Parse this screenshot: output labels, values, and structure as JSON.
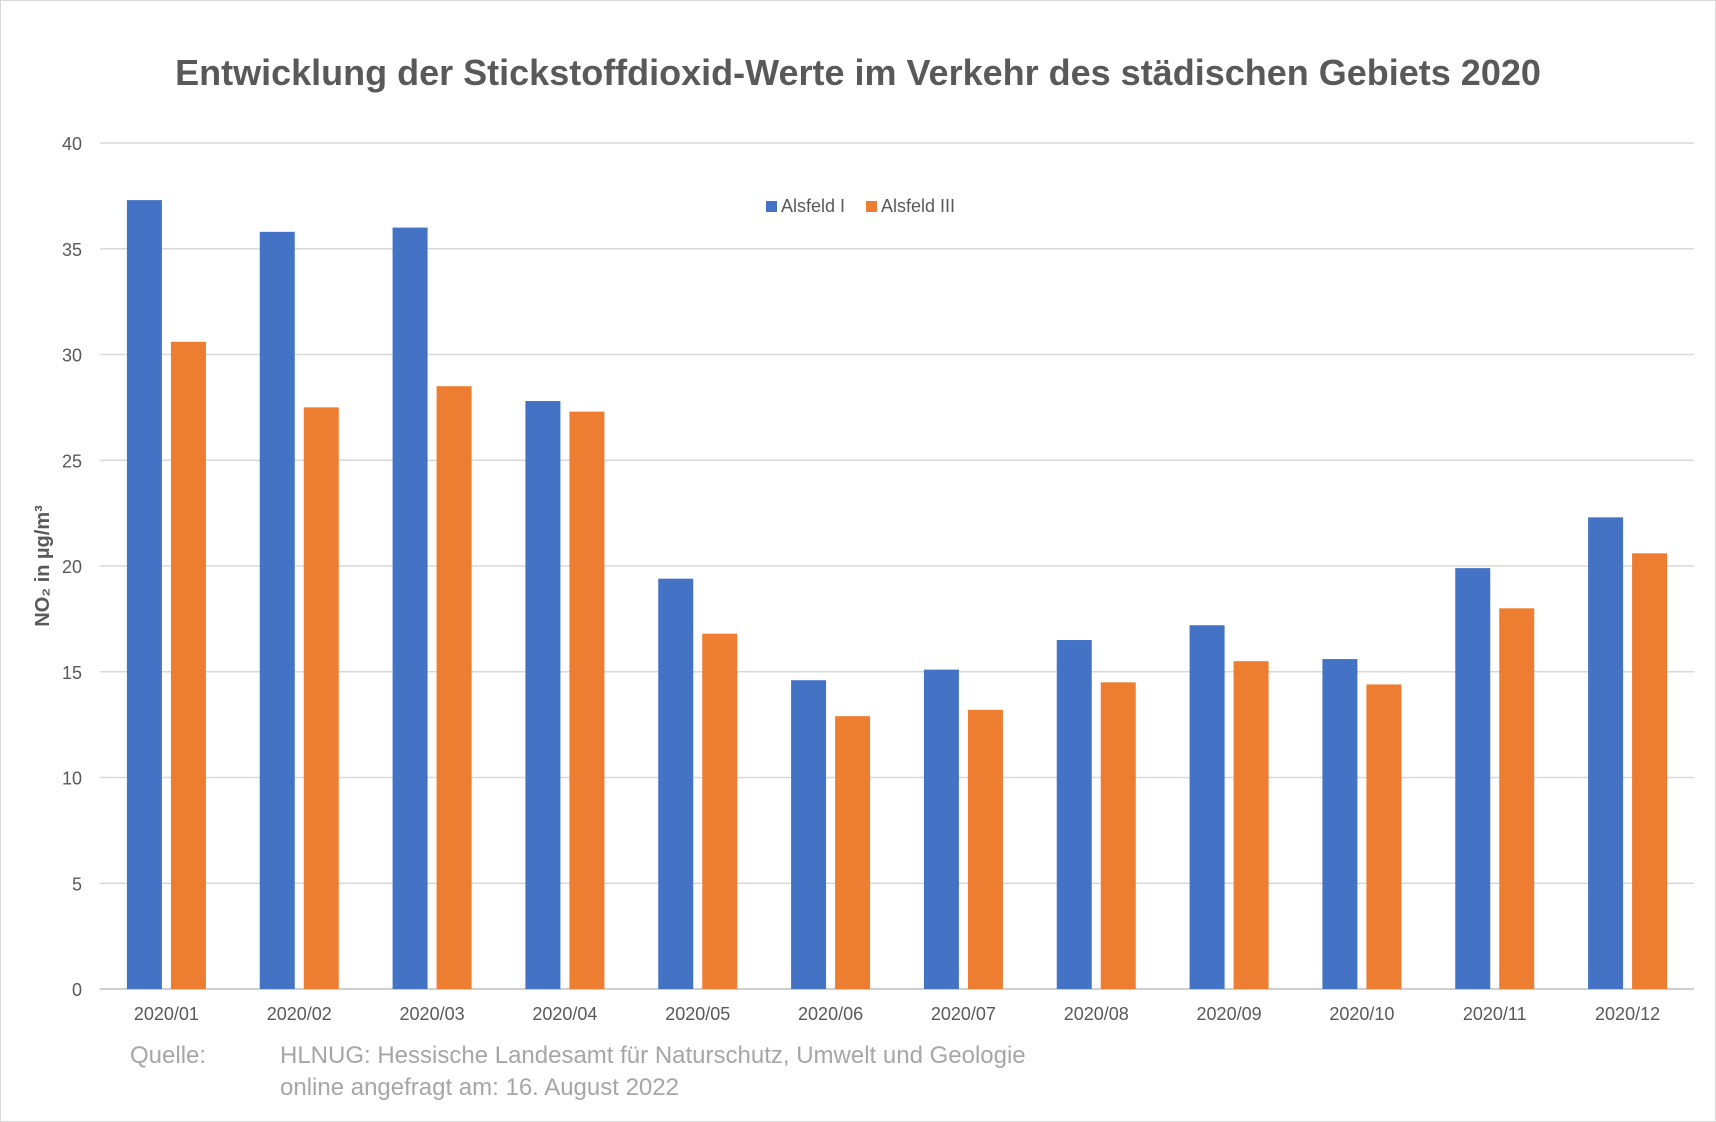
{
  "chart_data": {
    "type": "bar",
    "title": "Entwicklung der Stickstoffdioxid-Werte im Verkehr des städischen Gebiets 2020",
    "ylabel": "NO₂  in µg/m³",
    "xlabel": "",
    "ylim": [
      0,
      40
    ],
    "yticks": [
      0,
      5,
      10,
      15,
      20,
      25,
      30,
      35,
      40
    ],
    "grid": true,
    "legend_position": "top-center",
    "categories": [
      "2020/01",
      "2020/02",
      "2020/03",
      "2020/04",
      "2020/05",
      "2020/06",
      "2020/07",
      "2020/08",
      "2020/09",
      "2020/10",
      "2020/11",
      "2020/12"
    ],
    "series": [
      {
        "name": "Alsfeld I",
        "color": "#4472c4",
        "values": [
          37.3,
          35.8,
          36.0,
          27.8,
          19.4,
          14.6,
          15.1,
          16.5,
          17.2,
          15.6,
          19.9,
          22.3
        ]
      },
      {
        "name": "Alsfeld III",
        "color": "#ed7d31",
        "values": [
          30.6,
          27.5,
          28.5,
          27.3,
          16.8,
          12.9,
          13.2,
          14.5,
          15.5,
          14.4,
          18.0,
          20.6
        ]
      }
    ]
  },
  "source": {
    "label": "Quelle:",
    "line1": "HLNUG: Hessische Landesamt für Naturschutz, Umwelt und Geologie",
    "line2": "online angefragt am: 16. August 2022"
  }
}
